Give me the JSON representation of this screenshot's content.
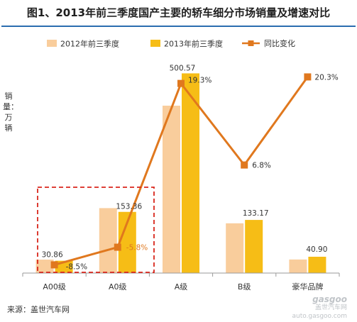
{
  "title": "图1、2013年前三季度国产主要的轿车细分市场销量及增速对比",
  "source": "来源：盖世汽车网",
  "watermark": {
    "logo": "gasgoo",
    "text": "盖世汽车网",
    "url": "auto.gasgoo.com"
  },
  "colors": {
    "series_2012": "#f9cd9c",
    "series_2013": "#f6bd16",
    "series_change": "#e0781e",
    "highlight_box": "#d9261c",
    "title_rule": "#2b6db0"
  },
  "chart_data": {
    "type": "bar",
    "title": "图1、2013年前三季度国产主要的轿车细分市场销量及增速对比",
    "ylabel": "销量：万辆",
    "xlabel": "",
    "categories": [
      "A00级",
      "A0级",
      "A级",
      "B级",
      "豪华品牌"
    ],
    "series": [
      {
        "name": "2012年前三季度",
        "values": [
          33.7,
          162.8,
          419.6,
          124.7,
          34.0
        ]
      },
      {
        "name": "2013年前三季度",
        "values": [
          30.86,
          153.36,
          500.57,
          133.17,
          40.9
        ]
      }
    ],
    "labeled_values": [
      "30.86",
      "153.36",
      "500.57",
      "133.17",
      "40.90"
    ],
    "line_series": {
      "name": "同比变化",
      "values": [
        -8.5,
        -5.8,
        19.3,
        6.8,
        20.3
      ],
      "labels": [
        "-8.5%",
        "-5.8%",
        "19.3%",
        "6.8%",
        "20.3%"
      ],
      "axis": "secondary"
    },
    "ylim": [
      0,
      560
    ],
    "y2lim": [
      -10,
      21
    ],
    "grid": false,
    "legend": "top",
    "annotation": "dashed red box around A00级 and A0级"
  }
}
